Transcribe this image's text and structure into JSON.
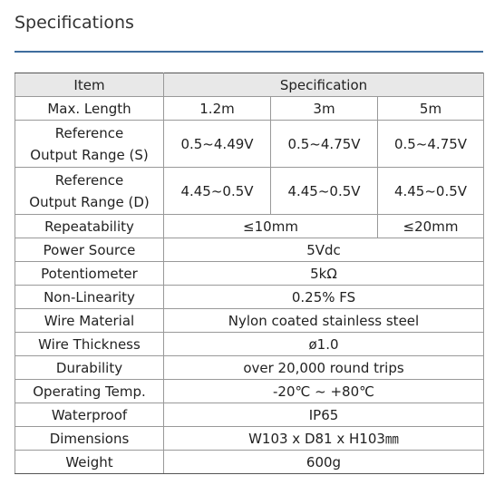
{
  "header": {
    "title": "Specifications"
  },
  "table": {
    "head": [
      "Item",
      "Specification"
    ],
    "rows": [
      [
        "Max. Length",
        "1.2m",
        "3m",
        "5m"
      ],
      [
        "Reference\nOutput Range (S)",
        "0.5~4.49V",
        "0.5~4.75V",
        "0.5~4.75V"
      ],
      [
        "Reference\nOutput Range (D)",
        "4.45~0.5V",
        "4.45~0.5V",
        "4.45~0.5V"
      ],
      [
        "Repeatability",
        "≤10mm",
        "≤20mm"
      ],
      [
        "Power Source",
        "5Vdc"
      ],
      [
        "Potentiometer",
        "5kΩ"
      ],
      [
        "Non-Linearity",
        "0.25% FS"
      ],
      [
        "Wire Material",
        "Nylon coated stainless steel"
      ],
      [
        "Wire Thickness",
        "ø1.0"
      ],
      [
        "Durability",
        "over 20,000 round trips"
      ],
      [
        "Operating Temp.",
        "-20℃ ~ +80℃"
      ],
      [
        "Waterproof",
        "IP65"
      ],
      [
        "Dimensions",
        "W103 x D81 x H103㎜"
      ],
      [
        "Weight",
        "600g"
      ]
    ]
  }
}
